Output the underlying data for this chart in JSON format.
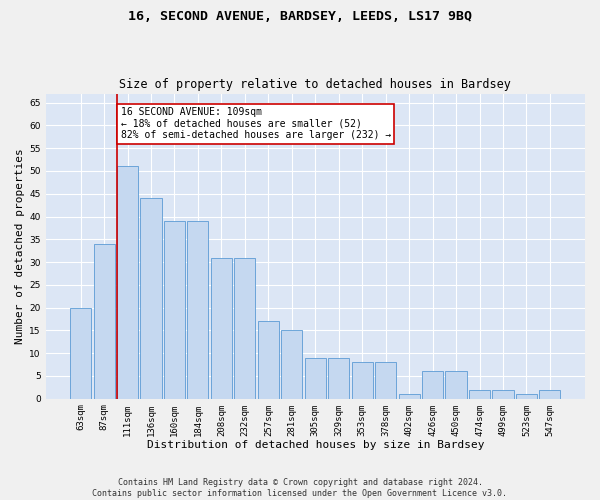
{
  "title1": "16, SECOND AVENUE, BARDSEY, LEEDS, LS17 9BQ",
  "title2": "Size of property relative to detached houses in Bardsey",
  "xlabel": "Distribution of detached houses by size in Bardsey",
  "ylabel": "Number of detached properties",
  "categories": [
    "63sqm",
    "87sqm",
    "111sqm",
    "136sqm",
    "160sqm",
    "184sqm",
    "208sqm",
    "232sqm",
    "257sqm",
    "281sqm",
    "305sqm",
    "329sqm",
    "353sqm",
    "378sqm",
    "402sqm",
    "426sqm",
    "450sqm",
    "474sqm",
    "499sqm",
    "523sqm",
    "547sqm"
  ],
  "values": [
    20,
    34,
    51,
    44,
    39,
    39,
    31,
    31,
    17,
    15,
    9,
    9,
    8,
    8,
    1,
    6,
    6,
    2,
    2,
    1,
    2
  ],
  "bar_color": "#c5d8f0",
  "bar_edge_color": "#5b9bd5",
  "vline_x_index": 2,
  "vline_color": "#cc0000",
  "annotation_text": "16 SECOND AVENUE: 109sqm\n← 18% of detached houses are smaller (52)\n82% of semi-detached houses are larger (232) →",
  "annotation_box_color": "#ffffff",
  "annotation_box_edge": "#cc0000",
  "ylim": [
    0,
    67
  ],
  "yticks": [
    0,
    5,
    10,
    15,
    20,
    25,
    30,
    35,
    40,
    45,
    50,
    55,
    60,
    65
  ],
  "background_color": "#dce6f5",
  "grid_color": "#ffffff",
  "fig_background": "#f0f0f0",
  "footer1": "Contains HM Land Registry data © Crown copyright and database right 2024.",
  "footer2": "Contains public sector information licensed under the Open Government Licence v3.0.",
  "title1_fontsize": 9.5,
  "title2_fontsize": 8.5,
  "xlabel_fontsize": 8,
  "ylabel_fontsize": 8,
  "tick_fontsize": 6.5,
  "annotation_fontsize": 7,
  "footer_fontsize": 6
}
